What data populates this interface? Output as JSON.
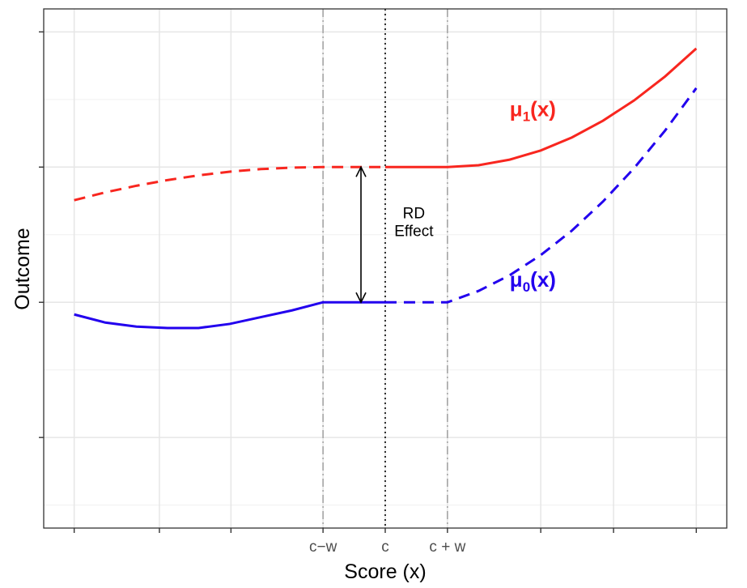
{
  "chart_data": {
    "type": "line",
    "title": "",
    "xlabel": "Score (x)",
    "ylabel": "Outcome",
    "xlim": [
      -5.49,
      5.49
    ],
    "ylim": [
      -1.67,
      2.17
    ],
    "grid": true,
    "x_ticks": [
      {
        "value": -5,
        "label": ""
      },
      {
        "value": -3.63,
        "label": ""
      },
      {
        "value": -2.48,
        "label": ""
      },
      {
        "value": -1,
        "label": "c−w"
      },
      {
        "value": 0,
        "label": "c"
      },
      {
        "value": 1,
        "label": "c + w"
      },
      {
        "value": 2.5,
        "label": ""
      },
      {
        "value": 3.67,
        "label": ""
      },
      {
        "value": 5,
        "label": ""
      }
    ],
    "y_ticks": [
      -1,
      0,
      1,
      2
    ],
    "y_minor": [
      -1.5,
      -0.5,
      0.5,
      1.5
    ],
    "vlines": [
      {
        "x": -1,
        "style": "dashdot",
        "color": "#a0a0a0"
      },
      {
        "x": 0,
        "style": "dotted",
        "color": "#000000"
      },
      {
        "x": 1,
        "style": "dashdot",
        "color": "#a0a0a0"
      }
    ],
    "series": [
      {
        "name": "mu1 left (dashed)",
        "color": "#f8261f",
        "dash": true,
        "points": [
          [
            -5,
            0.755
          ],
          [
            -4.5,
            0.813
          ],
          [
            -4,
            0.862
          ],
          [
            -3.5,
            0.904
          ],
          [
            -3,
            0.939
          ],
          [
            -2.5,
            0.966
          ],
          [
            -2,
            0.985
          ],
          [
            -1.5,
            0.996
          ],
          [
            -1,
            1
          ],
          [
            0,
            1
          ]
        ]
      },
      {
        "name": "mu1 right (solid)",
        "color": "#f8261f",
        "dash": false,
        "points": [
          [
            0,
            1
          ],
          [
            1,
            1
          ],
          [
            1.5,
            1.014
          ],
          [
            2,
            1.055
          ],
          [
            2.5,
            1.123
          ],
          [
            3,
            1.219
          ],
          [
            3.5,
            1.343
          ],
          [
            4,
            1.493
          ],
          [
            4.5,
            1.671
          ],
          [
            5,
            1.877
          ]
        ]
      },
      {
        "name": "mu0 left (solid)",
        "color": "#2200ee",
        "dash": false,
        "points": [
          [
            -5,
            -0.09
          ],
          [
            -4.5,
            -0.15
          ],
          [
            -4,
            -0.18
          ],
          [
            -3.5,
            -0.19
          ],
          [
            -3,
            -0.19
          ],
          [
            -2.5,
            -0.16
          ],
          [
            -2,
            -0.11
          ],
          [
            -1.5,
            -0.06
          ],
          [
            -1,
            0
          ],
          [
            0,
            0
          ]
        ]
      },
      {
        "name": "mu0 right (dashed)",
        "color": "#2200ee",
        "dash": true,
        "points": [
          [
            0,
            0
          ],
          [
            1,
            0
          ],
          [
            1.5,
            0.084
          ],
          [
            2,
            0.2
          ],
          [
            2.5,
            0.349
          ],
          [
            3,
            0.53
          ],
          [
            3.5,
            0.745
          ],
          [
            4,
            0.992
          ],
          [
            4.5,
            1.271
          ],
          [
            5,
            1.584
          ]
        ]
      }
    ],
    "arrow": {
      "x": -0.39,
      "y_from": 0,
      "y_to": 1
    },
    "annotations": {
      "rd_line1": "RD",
      "rd_line2": "Effect",
      "mu1": {
        "base": "μ",
        "sub": "1",
        "tail": "(x)",
        "color": "#f8261f",
        "x": 2.43,
        "y": 1.43
      },
      "mu0": {
        "base": "μ",
        "sub": "0",
        "tail": "(x)",
        "color": "#2200ee",
        "x": 2.43,
        "y": 0.17
      }
    }
  }
}
